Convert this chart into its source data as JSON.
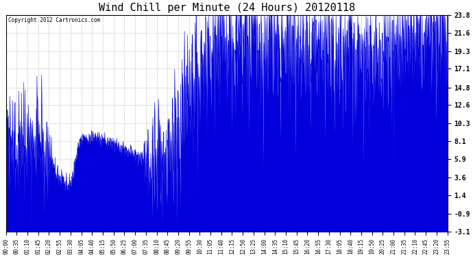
{
  "title": "Wind Chill per Minute (24 Hours) 20120118",
  "copyright": "Copyright 2012 Cartronics.com",
  "yticks": [
    23.8,
    21.6,
    19.3,
    17.1,
    14.8,
    12.6,
    10.3,
    8.1,
    5.9,
    3.6,
    1.4,
    -0.9,
    -3.1
  ],
  "ymin": -3.1,
  "ymax": 23.8,
  "line_color": "#0000dd",
  "fill_color": "#0000dd",
  "bg_color": "#ffffff",
  "grid_color": "#aaaaaa",
  "title_fontsize": 11,
  "xtick_labels": [
    "00:00",
    "00:35",
    "01:10",
    "01:45",
    "02:20",
    "02:55",
    "03:30",
    "04:05",
    "04:40",
    "05:15",
    "05:50",
    "06:25",
    "07:00",
    "07:35",
    "08:10",
    "08:45",
    "09:20",
    "09:55",
    "10:30",
    "11:05",
    "11:40",
    "12:15",
    "12:50",
    "13:25",
    "14:00",
    "14:35",
    "15:10",
    "15:45",
    "16:20",
    "16:55",
    "17:30",
    "18:05",
    "18:40",
    "19:15",
    "19:50",
    "20:25",
    "21:00",
    "21:35",
    "22:10",
    "22:45",
    "23:20",
    "23:55"
  ],
  "num_points": 1440,
  "figwidth": 6.9,
  "figheight": 3.75,
  "dpi": 100
}
